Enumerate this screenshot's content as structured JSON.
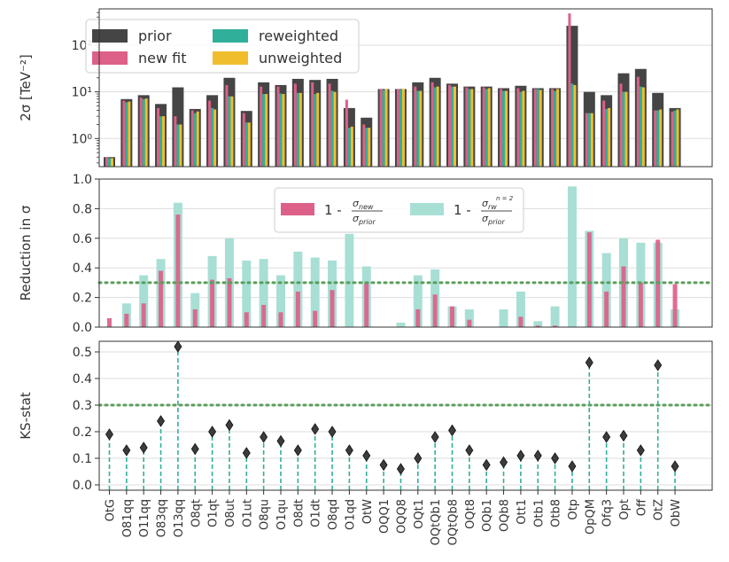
{
  "chart_data": [
    {
      "type": "bar",
      "panel": "top",
      "ylabel": "2σ [TeV⁻²]",
      "yscale": "log",
      "ylim": [
        0.25,
        600
      ],
      "yticks": [
        "10⁰",
        "10¹",
        "10²"
      ],
      "legend": {
        "placement": "top-left",
        "entries": [
          "prior",
          "new fit",
          "reweighted",
          "unweighted"
        ]
      },
      "series": [
        {
          "name": "prior",
          "color": "#454545",
          "values": [
            0.4,
            7.0,
            8.5,
            5.5,
            12.5,
            4.3,
            8.5,
            20,
            3.9,
            16,
            14,
            19,
            18,
            19,
            4.5,
            2.8,
            11.5,
            11.5,
            16,
            20,
            15,
            13,
            13,
            12,
            13.5,
            12,
            12,
            260,
            10,
            8.5,
            25,
            31,
            9.5,
            4.5
          ]
        },
        {
          "name": "new fit",
          "color": "#dd6088",
          "values": [
            0.4,
            6.5,
            7.5,
            4.5,
            3.0,
            4.0,
            6.5,
            14,
            3.5,
            13,
            13,
            15,
            16,
            15,
            6.8,
            2.0,
            11.5,
            11.5,
            13,
            16,
            14,
            12.5,
            12.5,
            11.5,
            12,
            11.5,
            11.5,
            480,
            3.5,
            6.5,
            15,
            21,
            4.0,
            3.8
          ]
        },
        {
          "name": "reweighted",
          "color": "#30b09a",
          "values": [
            0.38,
            6.0,
            7.0,
            3.0,
            2.0,
            3.5,
            4.5,
            8,
            2.2,
            9,
            9.2,
            9.5,
            9.0,
            10.5,
            1.7,
            1.7,
            11.0,
            11.2,
            10.5,
            12.5,
            13,
            11.5,
            11.5,
            10.5,
            10,
            11.5,
            10.5,
            15,
            3.5,
            4.3,
            10,
            13,
            4.0,
            4.0
          ]
        },
        {
          "name": "unweighted",
          "color": "#f0be2c",
          "values": [
            0.38,
            6.2,
            7.2,
            3.0,
            2.0,
            3.8,
            4.2,
            8,
            2.2,
            9,
            9.0,
            9.5,
            9.5,
            10,
            1.8,
            1.7,
            11.5,
            11.5,
            10.5,
            13,
            13,
            11.5,
            12,
            10.5,
            10.5,
            11,
            11.5,
            14,
            3.5,
            4.5,
            10,
            12.5,
            4.2,
            4.2
          ]
        }
      ]
    },
    {
      "type": "bar",
      "panel": "middle",
      "ylabel": "Reduction in σ",
      "ylim": [
        0,
        1.0
      ],
      "yticks": [
        "0.0",
        "0.2",
        "0.4",
        "0.6",
        "0.8",
        "1.0"
      ],
      "threshold": 0.3,
      "legend": {
        "placement": "top-center",
        "entries": [
          {
            "prefix": "1 - ",
            "num": "σ",
            "numsub": "new",
            "numsup": "",
            "den": "σ",
            "densub": "prior"
          },
          {
            "prefix": "1 - ",
            "num": "σ",
            "numsub": "rw",
            "numsup": "n = 2",
            "den": "σ",
            "densub": "prior"
          }
        ]
      },
      "series": [
        {
          "name": "1 - σnew/σprior",
          "color": "#dd6088",
          "values": [
            0.06,
            0.09,
            0.16,
            0.38,
            0.76,
            0.12,
            0.32,
            0.33,
            0.1,
            0.15,
            0.1,
            0.24,
            0.11,
            0.25,
            0.0,
            0.3,
            0.0,
            0.0,
            0.12,
            0.22,
            0.14,
            0.05,
            0.0,
            0.0,
            0.07,
            0.01,
            0.01,
            0.0,
            0.64,
            0.24,
            0.41,
            0.3,
            0.59,
            0.29
          ]
        },
        {
          "name": "1 - σrw(n=2)/σprior",
          "color": "#a8dfd5",
          "values": [
            0.0,
            0.16,
            0.35,
            0.46,
            0.84,
            0.23,
            0.48,
            0.6,
            0.45,
            0.46,
            0.35,
            0.51,
            0.47,
            0.45,
            0.63,
            0.41,
            0.0,
            0.03,
            0.35,
            0.39,
            0.14,
            0.12,
            0.0,
            0.12,
            0.24,
            0.04,
            0.14,
            0.95,
            0.65,
            0.5,
            0.6,
            0.57,
            0.57,
            0.12
          ]
        }
      ]
    },
    {
      "type": "scatter",
      "panel": "bottom",
      "ylabel": "KS-stat",
      "ylim": [
        -0.02,
        0.54
      ],
      "yticks": [
        "0.0",
        "0.1",
        "0.2",
        "0.3",
        "0.4",
        "0.5"
      ],
      "threshold": 0.3,
      "categories": [
        "OtG",
        "O81qq",
        "O11qq",
        "O83qq",
        "O13qq",
        "O8qt",
        "O1qt",
        "O8ut",
        "O1ut",
        "O8qu",
        "O1qu",
        "O8dt",
        "O1dt",
        "O8qd",
        "O1qd",
        "OtW",
        "OQQ1",
        "OQQ8",
        "OQt1",
        "OQtQb1",
        "OQtQb8",
        "OQt8",
        "OQb1",
        "OQb8",
        "Ott1",
        "Otb1",
        "Otb8",
        "Otp",
        "OpQM",
        "Ofq3",
        "Opt",
        "Off",
        "OtZ",
        "ObW"
      ],
      "values": [
        0.19,
        0.13,
        0.14,
        0.24,
        0.52,
        0.135,
        0.2,
        0.225,
        0.12,
        0.18,
        0.165,
        0.13,
        0.21,
        0.2,
        0.13,
        0.11,
        0.075,
        0.06,
        0.1,
        0.18,
        0.205,
        0.13,
        0.075,
        0.085,
        0.11,
        0.11,
        0.1,
        0.07,
        0.46,
        0.18,
        0.185,
        0.13,
        0.45,
        0.07
      ],
      "marker_color": "#3c3c3c",
      "stem_color": "#30b09a"
    }
  ]
}
